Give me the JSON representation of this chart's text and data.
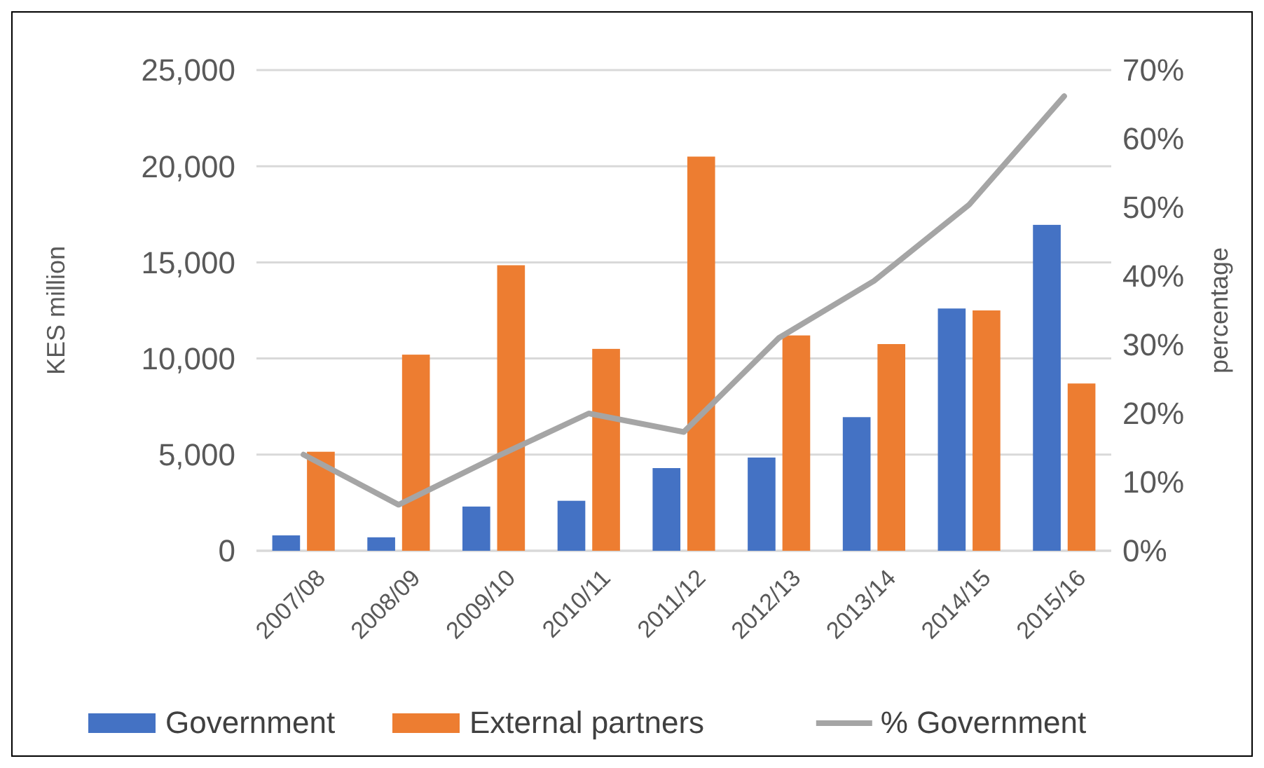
{
  "chart_data": {
    "type": "bar",
    "ylabel": "KES million",
    "y2label": "percentage",
    "categories": [
      "2007/08",
      "2008/09",
      "2009/10",
      "2010/11",
      "2011/12",
      "2012/13",
      "2013/14",
      "2014/15",
      "2015/16"
    ],
    "series": [
      {
        "name": "Government",
        "color": "#4472c4",
        "values": [
          800,
          700,
          2300,
          2600,
          4300,
          4850,
          6950,
          12600,
          16950
        ]
      },
      {
        "name": "External partners",
        "color": "#ed7d31",
        "values": [
          5150,
          10200,
          14850,
          10500,
          20500,
          11200,
          10750,
          12500,
          8700
        ]
      },
      {
        "name": "% Government",
        "type": "line",
        "axis": "y2",
        "color": "#a5a5a5",
        "values": [
          14,
          6.7,
          13.5,
          20,
          17.3,
          31,
          39.3,
          50.4,
          66.2
        ]
      }
    ],
    "ylim": [
      0,
      25000
    ],
    "yticks": [
      {
        "value": 0,
        "label": "0"
      },
      {
        "value": 5000,
        "label": "5,000"
      },
      {
        "value": 10000,
        "label": "10,000"
      },
      {
        "value": 15000,
        "label": "15,000"
      },
      {
        "value": 20000,
        "label": "20,000"
      },
      {
        "value": 25000,
        "label": "25,000"
      }
    ],
    "y2lim": [
      0,
      70
    ],
    "y2ticks": [
      {
        "value": 0,
        "label": "0%"
      },
      {
        "value": 10,
        "label": "10%"
      },
      {
        "value": 20,
        "label": "20%"
      },
      {
        "value": 30,
        "label": "30%"
      },
      {
        "value": 40,
        "label": "40%"
      },
      {
        "value": 50,
        "label": "50%"
      },
      {
        "value": 60,
        "label": "60%"
      },
      {
        "value": 70,
        "label": "70%"
      }
    ],
    "grid": "y",
    "legend": "bottom"
  }
}
